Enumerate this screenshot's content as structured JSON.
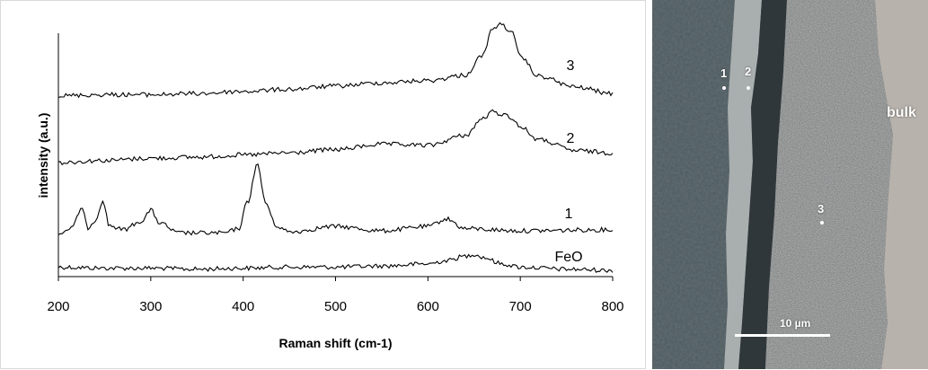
{
  "chart_data": {
    "type": "line",
    "xlabel": "Raman shift (cm-1)",
    "ylabel": "intensity (a.u.)",
    "xlim": [
      200,
      800
    ],
    "xticks": [
      200,
      300,
      400,
      500,
      600,
      700,
      800
    ],
    "grid": false,
    "series": [
      {
        "name": "FeO",
        "x": [
          200,
          250,
          300,
          350,
          400,
          450,
          500,
          550,
          600,
          620,
          640,
          650,
          660,
          680,
          700,
          750,
          800
        ],
        "y": [
          0.3,
          0.2,
          0.2,
          0.1,
          0.2,
          0.3,
          0.3,
          0.4,
          0.6,
          0.9,
          1.3,
          1.5,
          1.2,
          0.6,
          0.3,
          0.1,
          0.0
        ]
      },
      {
        "name": "1",
        "x": [
          200,
          215,
          225,
          232,
          240,
          248,
          255,
          270,
          290,
          300,
          310,
          330,
          380,
          395,
          405,
          415,
          425,
          435,
          450,
          500,
          550,
          600,
          620,
          640,
          700,
          800
        ],
        "y": [
          0.2,
          0.8,
          2.6,
          0.8,
          1.5,
          3.3,
          1.0,
          0.6,
          1.4,
          2.4,
          1.2,
          0.3,
          0.3,
          0.7,
          3.2,
          6.6,
          3.0,
          1.0,
          0.4,
          0.9,
          0.5,
          0.9,
          1.6,
          0.7,
          0.5,
          0.6
        ]
      },
      {
        "name": "2",
        "x": [
          200,
          250,
          300,
          350,
          400,
          450,
          500,
          550,
          600,
          640,
          660,
          670,
          680,
          690,
          700,
          720,
          760,
          800
        ],
        "y": [
          0.0,
          0.2,
          0.4,
          0.5,
          0.7,
          0.9,
          1.2,
          1.7,
          1.6,
          2.5,
          4.1,
          4.7,
          4.5,
          4.2,
          3.3,
          2.1,
          1.1,
          0.9
        ]
      },
      {
        "name": "3",
        "x": [
          200,
          250,
          300,
          350,
          400,
          450,
          500,
          550,
          600,
          640,
          660,
          670,
          680,
          690,
          700,
          720,
          760,
          800
        ],
        "y": [
          0.2,
          0.3,
          0.3,
          0.4,
          0.6,
          0.8,
          1.1,
          1.4,
          1.6,
          2.1,
          4.0,
          6.5,
          6.8,
          6.2,
          3.8,
          2.0,
          1.0,
          0.4
        ]
      }
    ],
    "series_labels": [
      "FeO",
      "1",
      "2",
      "3"
    ]
  },
  "micrograph": {
    "bulk_label": "bulk",
    "scale_label": "10 µm",
    "spots": [
      {
        "label": "1"
      },
      {
        "label": "2"
      },
      {
        "label": "3"
      }
    ]
  }
}
